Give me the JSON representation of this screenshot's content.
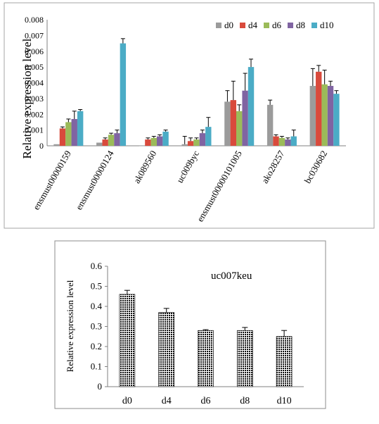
{
  "chart_data": [
    {
      "type": "bar",
      "ylabel": "Relative  expression level",
      "ylim": [
        0,
        0.008
      ],
      "yticks": [
        "0",
        "0.001",
        "0.002",
        "0.003",
        "0.004",
        "0.005",
        "0.006",
        "0.007",
        "0.008"
      ],
      "legend_position": "top-right",
      "categories": [
        "ensmust00000159",
        "ensmust00000124",
        "ak089560",
        "uc009byc",
        "ensmust00000101005",
        "ako28257",
        "bc030682"
      ],
      "series": [
        {
          "name": "d0",
          "color": "#9b9b9b",
          "values": [
            0.0001,
            0.0002,
            0.0,
            0.0001,
            0.0028,
            0.0026,
            0.0038
          ],
          "errors": [
            0.0,
            0.0,
            0.0,
            0.0005,
            0.0007,
            0.0003,
            0.0011
          ]
        },
        {
          "name": "d4",
          "color": "#d94a3c",
          "values": [
            0.0011,
            0.0004,
            0.0004,
            0.0003,
            0.0029,
            0.0006,
            0.0047
          ],
          "errors": [
            0.0001,
            0.0001,
            0.0001,
            0.0002,
            0.0012,
            0.0001,
            0.0004
          ]
        },
        {
          "name": "d6",
          "color": "#9bbb59",
          "values": [
            0.0015,
            0.0007,
            0.0005,
            0.0004,
            0.0022,
            0.0005,
            0.0039
          ],
          "errors": [
            0.0002,
            0.0001,
            0.0001,
            0.0001,
            0.0004,
            0.0001,
            0.0009
          ]
        },
        {
          "name": "d8",
          "color": "#8064a2",
          "values": [
            0.0017,
            0.0008,
            0.0006,
            0.0008,
            0.0035,
            0.0004,
            0.0038
          ],
          "errors": [
            0.0005,
            0.0002,
            0.0001,
            0.0002,
            0.0011,
            0.0001,
            0.0003
          ]
        },
        {
          "name": "d10",
          "color": "#4bacc6",
          "values": [
            0.0022,
            0.0065,
            0.0009,
            0.0012,
            0.005,
            0.0006,
            0.0033
          ],
          "errors": [
            0.0001,
            0.0003,
            0.0001,
            0.0006,
            0.0005,
            0.0004,
            0.0002
          ]
        }
      ]
    },
    {
      "type": "bar",
      "title": "uc007keu",
      "ylabel": "Relative expression level",
      "ylim": [
        0,
        0.6
      ],
      "yticks": [
        "0",
        "0.1",
        "0.2",
        "0.3",
        "0.4",
        "0.5",
        "0.6"
      ],
      "categories": [
        "d0",
        "d4",
        "d6",
        "d8",
        "d10"
      ],
      "values": [
        0.46,
        0.37,
        0.28,
        0.28,
        0.25
      ],
      "errors": [
        0.02,
        0.02,
        0.004,
        0.015,
        0.03
      ],
      "bar_fill": "dotted-black"
    }
  ]
}
